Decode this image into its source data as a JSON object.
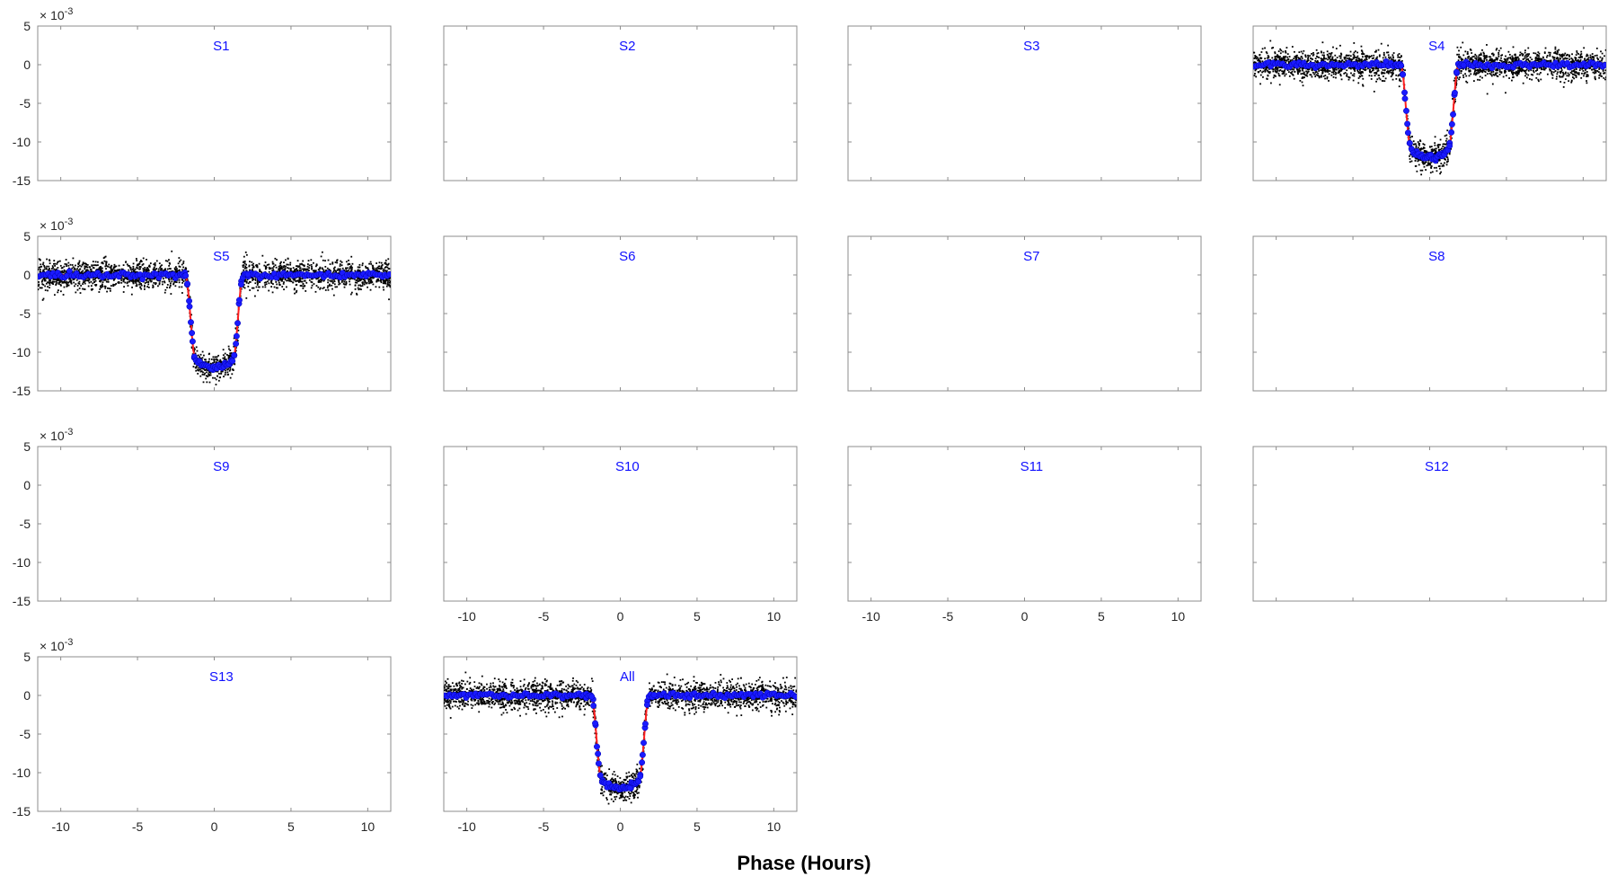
{
  "figure": {
    "xlabel": "Phase (Hours)",
    "y_multiplier_base": "× 10",
    "y_multiplier_exp": "-3"
  },
  "colors": {
    "data_points": "#000000",
    "binned_points": "#1a1aff",
    "model_line": "#ff2020",
    "panel_label": "#1010ff",
    "axes": "#8c8c8c"
  },
  "chart_data": {
    "type": "scatter",
    "xlim": [
      -11.5,
      11.5
    ],
    "ylim": [
      -15,
      5
    ],
    "x_ticks": [
      -10,
      -5,
      0,
      5,
      10
    ],
    "y_ticks": [
      5,
      0,
      -5,
      -10,
      -15
    ],
    "y_scale_note": "×10^-3",
    "transit_model": {
      "depth": -12,
      "baseline": 0,
      "ingress_start": -1.9,
      "ingress_end": -1.2,
      "egress_start": 1.2,
      "egress_end": 1.9,
      "scatter_sigma": 0.9
    },
    "panels": [
      {
        "label": "S1",
        "has_data": false,
        "show_xticklabels": false,
        "show_yticklabels": true
      },
      {
        "label": "S2",
        "has_data": false,
        "show_xticklabels": false,
        "show_yticklabels": false
      },
      {
        "label": "S3",
        "has_data": false,
        "show_xticklabels": false,
        "show_yticklabels": false
      },
      {
        "label": "S4",
        "has_data": true,
        "show_xticklabels": false,
        "show_yticklabels": false
      },
      {
        "label": "S5",
        "has_data": true,
        "show_xticklabels": false,
        "show_yticklabels": true
      },
      {
        "label": "S6",
        "has_data": false,
        "show_xticklabels": false,
        "show_yticklabels": false
      },
      {
        "label": "S7",
        "has_data": false,
        "show_xticklabels": false,
        "show_yticklabels": false
      },
      {
        "label": "S8",
        "has_data": false,
        "show_xticklabels": false,
        "show_yticklabels": false
      },
      {
        "label": "S9",
        "has_data": false,
        "show_xticklabels": false,
        "show_yticklabels": true
      },
      {
        "label": "S10",
        "has_data": false,
        "show_xticklabels": true,
        "show_yticklabels": false
      },
      {
        "label": "S11",
        "has_data": false,
        "show_xticklabels": true,
        "show_yticklabels": false
      },
      {
        "label": "S12",
        "has_data": false,
        "show_xticklabels": false,
        "show_yticklabels": false
      },
      {
        "label": "S13",
        "has_data": false,
        "show_xticklabels": true,
        "show_yticklabels": true
      },
      {
        "label": "All",
        "has_data": true,
        "show_xticklabels": true,
        "show_yticklabels": false
      }
    ]
  }
}
